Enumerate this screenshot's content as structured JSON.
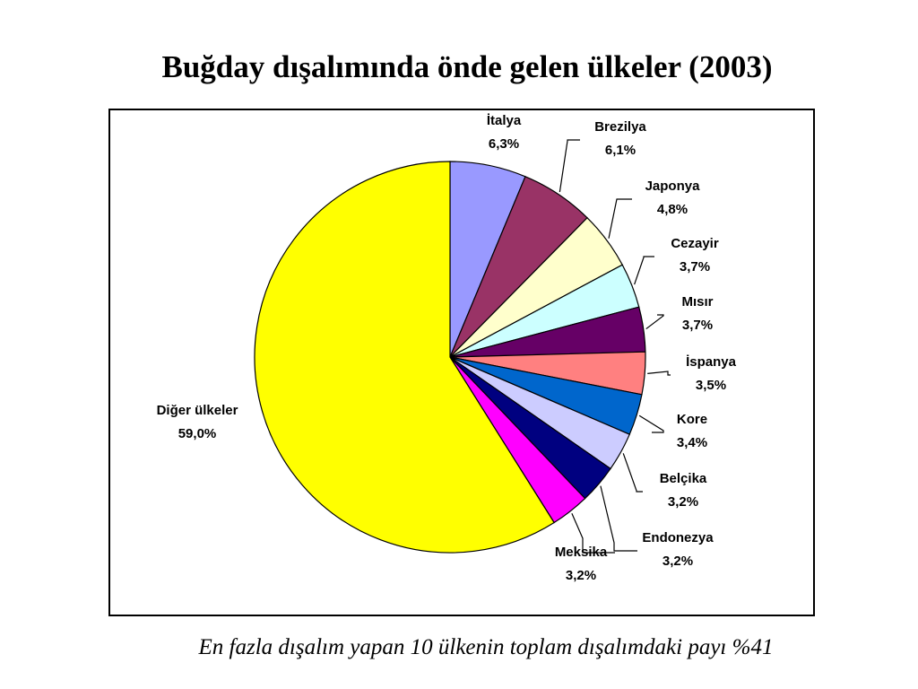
{
  "chart_data": {
    "type": "pie",
    "title": "Buğday dışalımında önde gelen ülkeler (2003)",
    "note": "En fazla dışalım yapan 10 ülkenin toplam dışalımdaki payı %41",
    "categories": [
      "İtalya",
      "Brezilya",
      "Japonya",
      "Cezayir",
      "Mısır",
      "İspanya",
      "Kore",
      "Belçika",
      "Endonezya",
      "Meksika",
      "Diğer ülkeler"
    ],
    "values": [
      6.3,
      6.1,
      4.8,
      3.7,
      3.7,
      3.5,
      3.4,
      3.2,
      3.2,
      3.2,
      59.0
    ],
    "value_labels": [
      "6,3%",
      "6,1%",
      "4,8%",
      "3,7%",
      "3,7%",
      "3,5%",
      "3,4%",
      "3,2%",
      "3,2%",
      "3,2%",
      "59,0%"
    ],
    "colors": [
      "#9999ff",
      "#993366",
      "#ffffcc",
      "#ccffff",
      "#660066",
      "#ff8080",
      "#0066cc",
      "#ccccff",
      "#000080",
      "#ff00ff",
      "#ffff00"
    ]
  }
}
